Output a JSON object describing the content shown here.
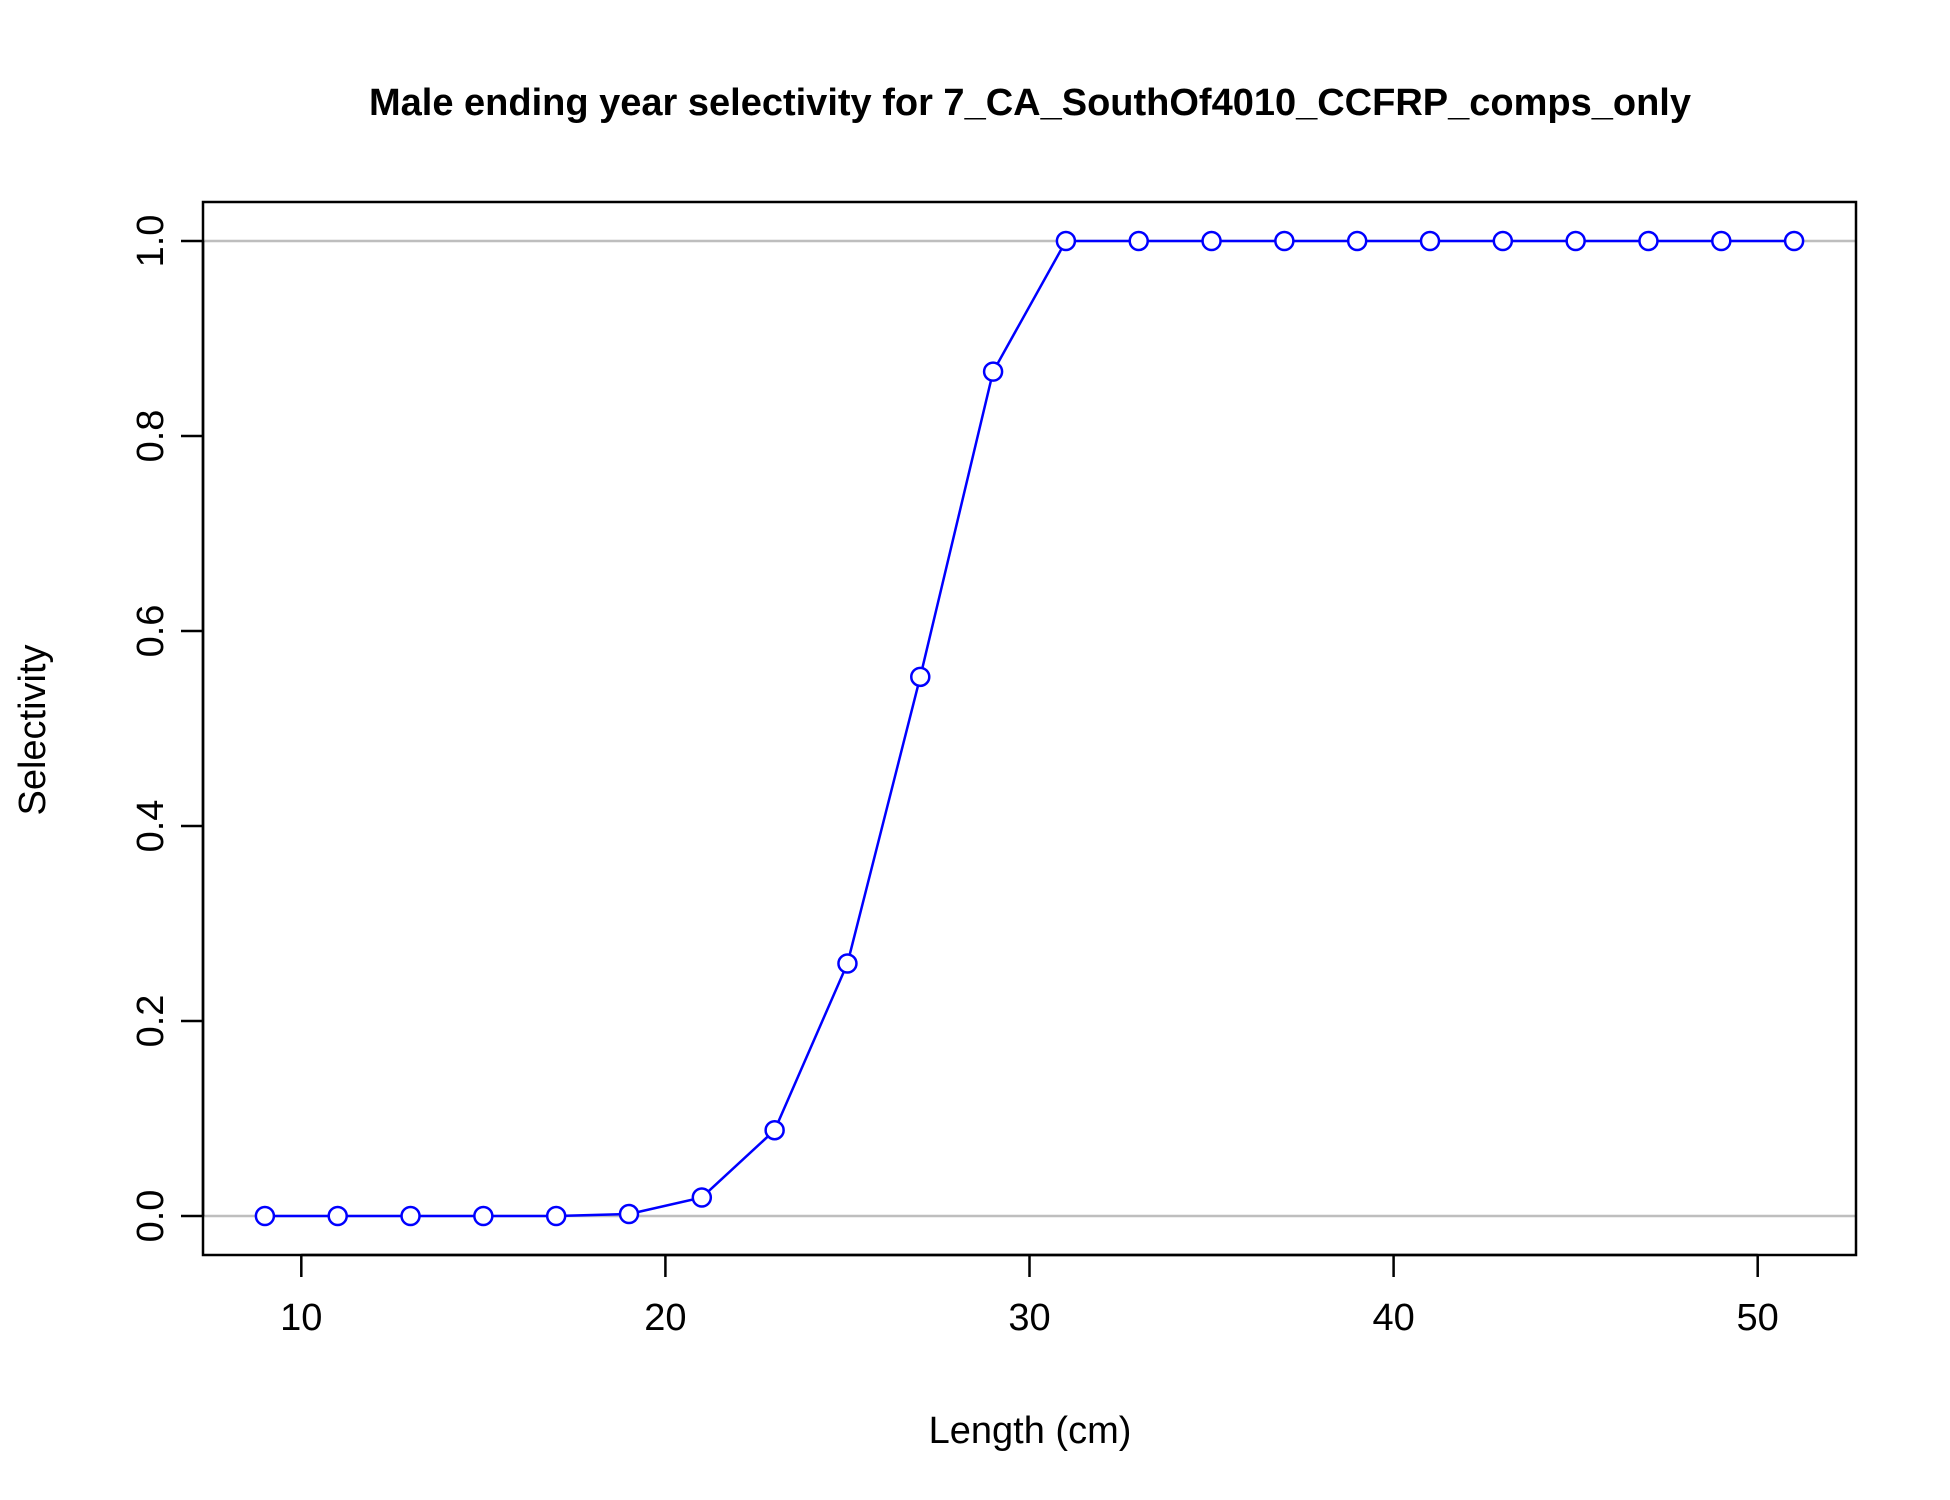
{
  "chart_data": {
    "type": "line",
    "title": "Male ending year selectivity for 7_CA_SouthOf4010_CCFRP_comps_only",
    "xlabel": "Length (cm)",
    "ylabel": "Selectivity",
    "xlim": [
      7.3,
      52.7
    ],
    "ylim": [
      -0.04,
      1.04
    ],
    "xticks": [
      10,
      20,
      30,
      40,
      50
    ],
    "xtick_labels": [
      "10",
      "20",
      "30",
      "40",
      "50"
    ],
    "yticks": [
      0.0,
      0.2,
      0.4,
      0.6,
      0.8,
      1.0
    ],
    "ytick_labels": [
      "0.0",
      "0.2",
      "0.4",
      "0.6",
      "0.8",
      "1.0"
    ],
    "reference_lines_y": [
      0,
      1
    ],
    "reference_line_color": "#bebebe",
    "grid": false,
    "legend": "none",
    "series": [
      {
        "color": "#0000ff",
        "marker": "open-circle",
        "x": [
          9,
          11,
          13,
          15,
          17,
          19,
          21,
          23,
          25,
          27,
          29,
          31,
          33,
          35,
          37,
          39,
          41,
          43,
          45,
          47,
          49,
          51
        ],
        "y": [
          0.0,
          0.0,
          0.0,
          0.0,
          0.0,
          0.002,
          0.019,
          0.088,
          0.259,
          0.553,
          0.866,
          1.0,
          1.0,
          1.0,
          1.0,
          1.0,
          1.0,
          1.0,
          1.0,
          1.0,
          1.0,
          1.0
        ]
      }
    ]
  }
}
